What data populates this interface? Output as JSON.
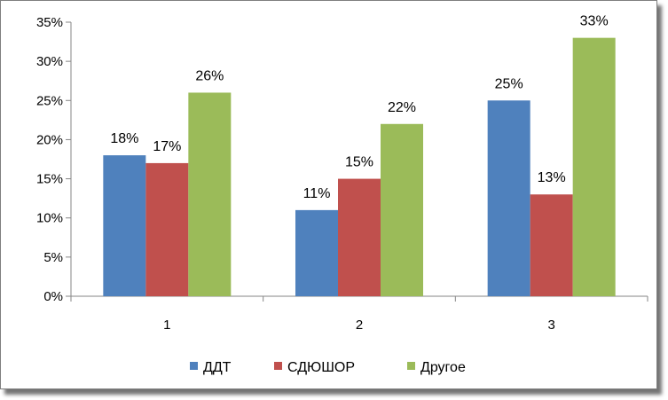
{
  "chart_data": {
    "type": "bar",
    "categories": [
      "1",
      "2",
      "3"
    ],
    "series": [
      {
        "name": "ДДТ",
        "values": [
          18,
          11,
          25
        ],
        "labels": [
          "18%",
          "11%",
          "25%"
        ],
        "color": "#4f81bd"
      },
      {
        "name": "СДЮШОР",
        "values": [
          17,
          15,
          13
        ],
        "labels": [
          "17%",
          "15%",
          "13%"
        ],
        "color": "#c0504d"
      },
      {
        "name": "Другое",
        "values": [
          26,
          22,
          33
        ],
        "labels": [
          "26%",
          "22%",
          "33%"
        ],
        "color": "#9bbb59"
      }
    ],
    "yticks": [
      "0%",
      "5%",
      "10%",
      "15%",
      "20%",
      "25%",
      "30%",
      "35%"
    ],
    "ylim": [
      0,
      35
    ],
    "ytick_step": 5,
    "title": "",
    "xlabel": "",
    "ylabel": "",
    "grid": false,
    "legend_position": "bottom"
  }
}
